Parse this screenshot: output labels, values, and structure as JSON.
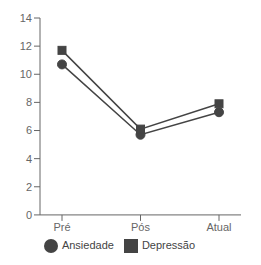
{
  "chart_data": {
    "type": "line",
    "categories": [
      "Pré",
      "Pós",
      "Atual"
    ],
    "series": [
      {
        "name": "Ansiedade",
        "color": "#444444",
        "marker": "circle",
        "values": [
          10.7,
          5.7,
          7.3
        ]
      },
      {
        "name": "Depressão",
        "color": "#444444",
        "marker": "square",
        "values": [
          11.7,
          6.1,
          7.9
        ]
      }
    ],
    "ylim": [
      0,
      14
    ],
    "yticks": [
      0,
      2,
      4,
      6,
      8,
      10,
      12,
      14
    ],
    "grid": false,
    "legend": "bottom"
  }
}
